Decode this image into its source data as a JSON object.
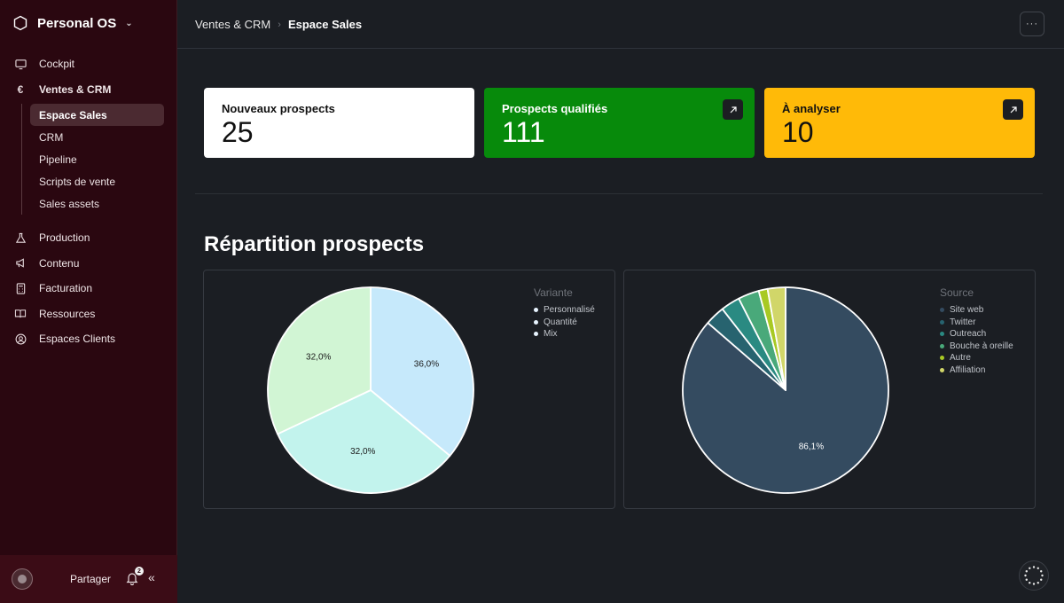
{
  "workspace": {
    "name": "Personal OS",
    "icon": "workspace-icon"
  },
  "sidebar": {
    "items": [
      {
        "label": "Cockpit",
        "icon": "monitor-icon"
      },
      {
        "label": "Ventes & CRM",
        "icon": "euro-icon"
      },
      {
        "label": "Production",
        "icon": "flask-icon"
      },
      {
        "label": "Contenu",
        "icon": "megaphone-icon"
      },
      {
        "label": "Facturation",
        "icon": "calculator-icon"
      },
      {
        "label": "Ressources",
        "icon": "book-icon"
      },
      {
        "label": "Espaces Clients",
        "icon": "user-circle-icon"
      }
    ],
    "sub_items": [
      {
        "label": "Espace Sales",
        "active": true
      },
      {
        "label": "CRM"
      },
      {
        "label": "Pipeline"
      },
      {
        "label": "Scripts de vente"
      },
      {
        "label": "Sales assets"
      }
    ],
    "footer": {
      "share_label": "Partager",
      "notifications": "2"
    }
  },
  "header": {
    "breadcrumb": [
      "Ventes & CRM",
      "Espace Sales"
    ],
    "more_label": "···"
  },
  "stats": [
    {
      "label": "Nouveaux prospects",
      "value": "25",
      "bg": "#ffffff",
      "fg": "#111111"
    },
    {
      "label": "Prospects qualifiés",
      "value": "111",
      "bg": "#078a0b",
      "fg": "#ffffff"
    },
    {
      "label": "À analyser",
      "value": "10",
      "bg": "#ffba08",
      "fg": "#111111"
    }
  ],
  "section_title": "Répartition prospects",
  "chart_data": [
    {
      "type": "pie",
      "legend_title": "Variante",
      "labels": [
        "Personnalisé",
        "Quantité",
        "Mix"
      ],
      "values": [
        36.0,
        32.0,
        32.0
      ],
      "value_labels": [
        "36,0%",
        "32,0%",
        "32,0%"
      ],
      "colors": [
        "#c6e9fb",
        "#c2f3ed",
        "#d1f5d4"
      ],
      "legend_placement": "top-right"
    },
    {
      "type": "pie",
      "legend_title": "Source",
      "labels": [
        "Site web",
        "Twitter",
        "Outreach",
        "Bouche à oreille",
        "Autre",
        "Affiliation"
      ],
      "values": [
        86.1,
        3.1,
        3.0,
        3.3,
        1.4,
        2.8
      ],
      "value_labels": [
        "86,1%",
        "",
        "",
        "",
        "",
        ""
      ],
      "colors": [
        "#344b60",
        "#27636f",
        "#2a8a82",
        "#49a97a",
        "#a8c924",
        "#d1d669"
      ],
      "legend_placement": "top-right"
    }
  ]
}
